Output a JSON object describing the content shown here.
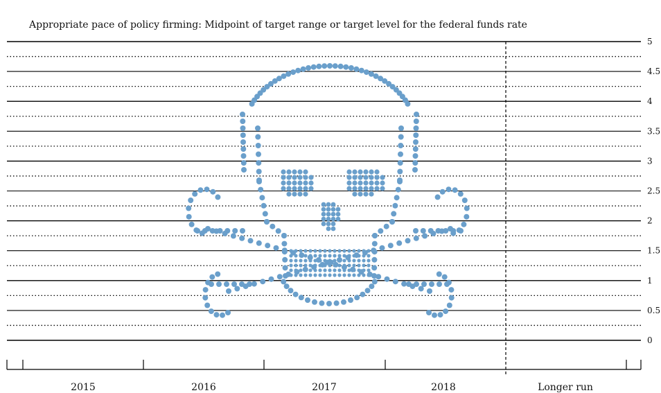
{
  "chart_data": {
    "type": "scatter",
    "title": "Appropriate pace of policy firming: Midpoint of target range or target level for the federal funds rate",
    "categories": [
      "2015",
      "2016",
      "2017",
      "2018",
      "Longer run"
    ],
    "ylim": [
      0,
      5
    ],
    "y_ticks": [
      "0",
      "0.5",
      "1",
      "1.5",
      "2",
      "2.5",
      "3",
      "3.5",
      "4",
      "4.5",
      "5"
    ],
    "grid": "solid lines at whole numbers and half points, dotted lines at each quarter point",
    "dot_color": "#6a9fcb",
    "shape_note": "dots arranged to form a skull and crossbones"
  }
}
